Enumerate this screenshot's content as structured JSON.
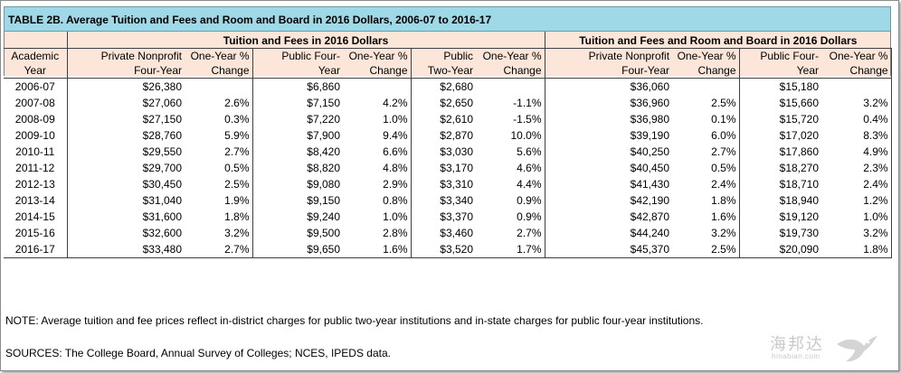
{
  "title": "TABLE 2B. Average Tuition and Fees and Room and Board in 2016 Dollars, 2006-07 to 2016-17",
  "groups": {
    "tuition": "Tuition and Fees in 2016 Dollars",
    "room_board": "Tuition and Fees and Room and Board in 2016 Dollars"
  },
  "columns": [
    {
      "l1": "Academic",
      "l2": "Year"
    },
    {
      "l1": "Private Nonprofit",
      "l2": "Four-Year"
    },
    {
      "l1": "One-Year %",
      "l2": "Change"
    },
    {
      "l1": "Public Four-",
      "l2": "Year"
    },
    {
      "l1": "One-Year %",
      "l2": "Change"
    },
    {
      "l1": "Public",
      "l2": "Two-Year"
    },
    {
      "l1": "One-Year %",
      "l2": "Change"
    },
    {
      "l1": "Private Nonprofit",
      "l2": "Four-Year"
    },
    {
      "l1": "One-Year %",
      "l2": "Change"
    },
    {
      "l1": "Public Four-",
      "l2": "Year"
    },
    {
      "l1": "One-Year %",
      "l2": "Change"
    }
  ],
  "rows": [
    [
      "2006-07",
      "$26,380",
      "",
      "$6,860",
      "",
      "$2,680",
      "",
      "$36,060",
      "",
      "$15,180",
      ""
    ],
    [
      "2007-08",
      "$27,060",
      "2.6%",
      "$7,150",
      "4.2%",
      "$2,650",
      "-1.1%",
      "$36,960",
      "2.5%",
      "$15,660",
      "3.2%"
    ],
    [
      "2008-09",
      "$27,150",
      "0.3%",
      "$7,220",
      "1.0%",
      "$2,610",
      "-1.5%",
      "$36,980",
      "0.1%",
      "$15,720",
      "0.4%"
    ],
    [
      "2009-10",
      "$28,760",
      "5.9%",
      "$7,900",
      "9.4%",
      "$2,870",
      "10.0%",
      "$39,190",
      "6.0%",
      "$17,020",
      "8.3%"
    ],
    [
      "2010-11",
      "$29,550",
      "2.7%",
      "$8,420",
      "6.6%",
      "$3,030",
      "5.6%",
      "$40,250",
      "2.7%",
      "$17,860",
      "4.9%"
    ],
    [
      "2011-12",
      "$29,700",
      "0.5%",
      "$8,820",
      "4.8%",
      "$3,170",
      "4.6%",
      "$40,450",
      "0.5%",
      "$18,270",
      "2.3%"
    ],
    [
      "2012-13",
      "$30,450",
      "2.5%",
      "$9,080",
      "2.9%",
      "$3,310",
      "4.4%",
      "$41,430",
      "2.4%",
      "$18,710",
      "2.4%"
    ],
    [
      "2013-14",
      "$31,040",
      "1.9%",
      "$9,150",
      "0.8%",
      "$3,340",
      "0.9%",
      "$42,190",
      "1.8%",
      "$18,940",
      "1.2%"
    ],
    [
      "2014-15",
      "$31,600",
      "1.8%",
      "$9,240",
      "1.0%",
      "$3,370",
      "0.9%",
      "$42,870",
      "1.6%",
      "$19,120",
      "1.0%"
    ],
    [
      "2015-16",
      "$32,600",
      "3.2%",
      "$9,500",
      "2.8%",
      "$3,460",
      "2.7%",
      "$44,240",
      "3.2%",
      "$19,730",
      "3.2%"
    ],
    [
      "2016-17",
      "$33,480",
      "2.7%",
      "$9,650",
      "1.6%",
      "$3,520",
      "1.7%",
      "$45,370",
      "2.5%",
      "$20,090",
      "1.8%"
    ]
  ],
  "note": "NOTE: Average tuition and fee prices reflect in-district charges for public two-year institutions and in-state charges for public four-year institutions.",
  "sources": "SOURCES: The College Board, Annual Survey of Colleges; NCES, IPEDS data.",
  "watermark": {
    "text": "海邦达",
    "sub": "hinabian.com",
    "icon": "bird-logo-icon"
  },
  "colors": {
    "title_bg": "#9fd8e6",
    "header_bg": "#fbe6d9"
  }
}
